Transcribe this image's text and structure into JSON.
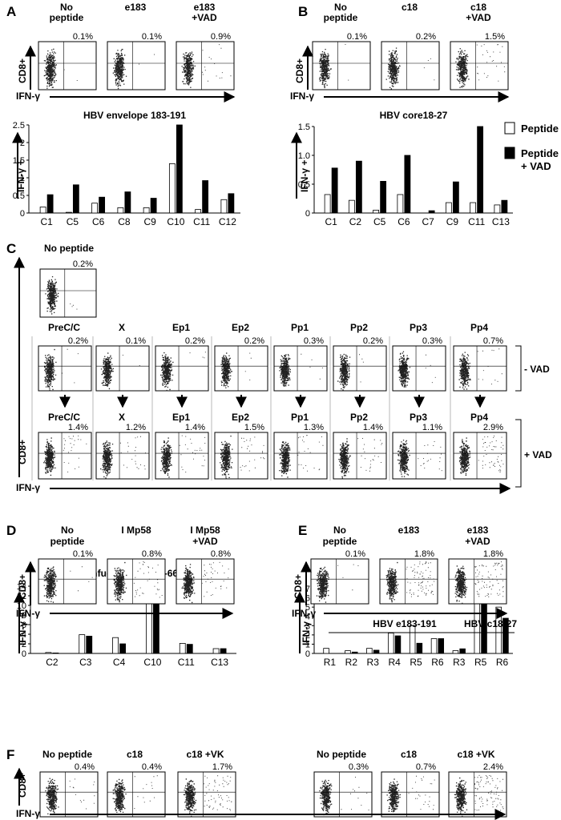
{
  "panel_letters": {
    "A": "A",
    "B": "B",
    "C": "C",
    "D": "D",
    "E": "E",
    "F": "F"
  },
  "axis_labels": {
    "cd8": "CD8+",
    "ifn": "IFN-γ",
    "ifn_pos": "IFN-γ +"
  },
  "panelA": {
    "conditions": [
      "No peptide",
      "e183",
      "e183 +VAD"
    ],
    "condition_lines": [
      [
        "No",
        "peptide"
      ],
      [
        "e183",
        ""
      ],
      [
        "e183",
        "+VAD"
      ]
    ],
    "percents": [
      "0.1%",
      "0.1%",
      "0.9%"
    ]
  },
  "panelB": {
    "condition_lines": [
      [
        "No",
        "peptide"
      ],
      [
        "c18",
        ""
      ],
      [
        "c18",
        "+VAD"
      ]
    ],
    "percents": [
      "0.1%",
      "0.2%",
      "1.5%"
    ]
  },
  "panelC": {
    "no_peptide_label": "No peptide",
    "no_peptide_percent": "0.2%",
    "labels": [
      "PreC/C",
      "X",
      "Ep1",
      "Ep2",
      "Pp1",
      "Pp2",
      "Pp3",
      "Pp4"
    ],
    "row1_percents": [
      "0.2%",
      "0.1%",
      "0.2%",
      "0.2%",
      "0.3%",
      "0.2%",
      "0.3%",
      "0.7%"
    ],
    "row2_percents": [
      "1.4%",
      "1.2%",
      "1.4%",
      "1.5%",
      "1.3%",
      "1.4%",
      "1.1%",
      "2.9%"
    ],
    "minus_vad": "- VAD",
    "plus_vad": "+ VAD"
  },
  "panelD": {
    "condition_lines": [
      [
        "No",
        "peptide"
      ],
      [
        "I Mp58",
        ""
      ],
      [
        "I Mp58",
        "+VAD"
      ]
    ],
    "percents": [
      "0.1%",
      "0.8%",
      "0.8%"
    ]
  },
  "panelE": {
    "condition_lines": [
      [
        "No",
        "peptide"
      ],
      [
        "e183",
        ""
      ],
      [
        "e183",
        "+VAD"
      ]
    ],
    "percents": [
      "0.1%",
      "1.8%",
      "1.8%"
    ],
    "group1": "HBV e183-191",
    "group2": "HBV c18-27"
  },
  "panelF": {
    "conditions": [
      "No peptide",
      "c18",
      "c18 +VK",
      "No peptide",
      "c18",
      "c18 +VK"
    ],
    "percents": [
      "0.4%",
      "0.4%",
      "1.7%",
      "0.3%",
      "0.7%",
      "2.4%"
    ]
  },
  "legend": {
    "peptide": "Peptide",
    "peptide_vad_1": "Peptide",
    "peptide_vad_2": "+ VAD"
  },
  "colors": {
    "open_bar": "#ffffff",
    "filled_bar": "#000000"
  },
  "chart_data": [
    {
      "type": "bar",
      "title": "HBV envelope 183-191",
      "ylabel": "IFN-γ +",
      "categories": [
        "C1",
        "C5",
        "C6",
        "C8",
        "C9",
        "C10",
        "C11",
        "C12"
      ],
      "series": [
        {
          "name": "Peptide",
          "values": [
            0.17,
            0.02,
            0.28,
            0.15,
            0.15,
            1.4,
            0.1,
            0.38
          ]
        },
        {
          "name": "Peptide + VAD",
          "values": [
            0.52,
            0.8,
            0.45,
            0.6,
            0.42,
            2.5,
            0.92,
            0.55
          ]
        }
      ],
      "ylim": [
        0,
        2.5
      ],
      "yticks": [
        "0",
        "0.5",
        "1",
        "1.5",
        "2",
        "2.5"
      ]
    },
    {
      "type": "bar",
      "title": "HBV core18-27",
      "ylabel": "IFN-γ +",
      "categories": [
        "C1",
        "C2",
        "C5",
        "C6",
        "C7",
        "C9",
        "C11",
        "C13"
      ],
      "series": [
        {
          "name": "Peptide",
          "values": [
            0.32,
            0.22,
            0.05,
            0.32,
            0.0,
            0.18,
            0.18,
            0.14
          ]
        },
        {
          "name": "Peptide + VAD",
          "values": [
            0.78,
            0.9,
            0.55,
            1.0,
            0.04,
            0.54,
            1.5,
            0.22
          ]
        }
      ],
      "ylim": [
        0,
        1.5
      ],
      "yticks": [
        "0",
        "0.5",
        "1.0",
        "1.5"
      ]
    },
    {
      "type": "bar",
      "title": "Infuenza A Mp58-66",
      "ylabel": "IFN-γ +",
      "categories": [
        "C2",
        "C3",
        "C4",
        "C10",
        "C11",
        "C13"
      ],
      "series": [
        {
          "name": "Peptide",
          "values": [
            0.2,
            3.9,
            3.3,
            12.2,
            2.1,
            1.0
          ]
        },
        {
          "name": "Peptide + VAD",
          "values": [
            0.1,
            3.6,
            2.0,
            12.8,
            1.9,
            1.0
          ]
        }
      ],
      "ylim": [
        0,
        14
      ],
      "yticks": [
        "0",
        "2",
        "4",
        "6",
        "8",
        "10",
        "12",
        "14"
      ]
    },
    {
      "type": "bar",
      "title": "",
      "ylabel": "IFN-γ +",
      "categories": [
        "R1",
        "R2",
        "R3",
        "R4",
        "R5",
        "R6",
        "R3",
        "R5",
        "R6"
      ],
      "series": [
        {
          "name": "Peptide",
          "values": [
            0.55,
            0.3,
            0.55,
            2.2,
            3.0,
            1.6,
            0.3,
            6.8,
            5.0
          ]
        },
        {
          "name": "Peptide + VAD",
          "values": [
            0.0,
            0.15,
            0.35,
            1.9,
            1.1,
            1.6,
            0.5,
            6.0,
            3.8
          ]
        }
      ],
      "ylim": [
        0,
        7
      ],
      "yticks": [
        "0",
        "1",
        "2",
        "3",
        "4",
        "5",
        "6",
        "7"
      ]
    }
  ]
}
